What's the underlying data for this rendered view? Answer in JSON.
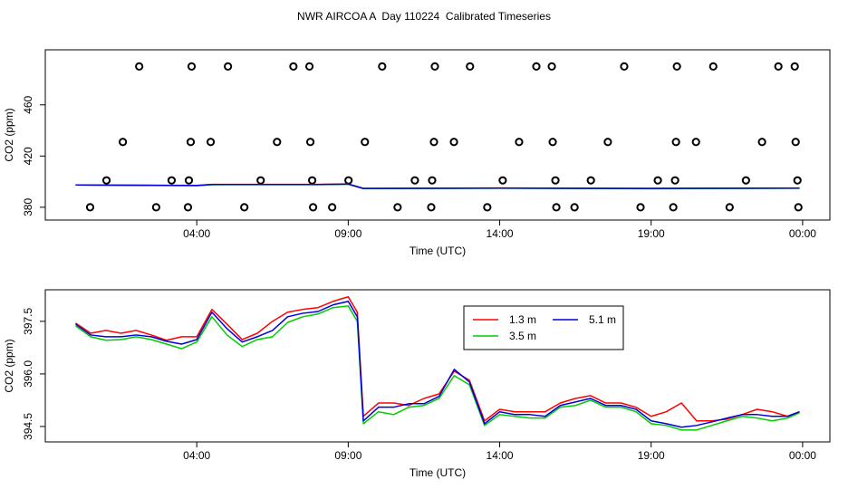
{
  "chart_data": [
    {
      "type": "line",
      "title": "NWR AIRCOA A  Day 110224  Calibrated Timeseries",
      "x_label": "Time (UTC)",
      "y_label": "CO2 (ppm)",
      "xlim": [
        -1,
        24.9
      ],
      "ylim": [
        370,
        503
      ],
      "xticks": [
        {
          "value": 4,
          "label": "04:00"
        },
        {
          "value": 9,
          "label": "09:00"
        },
        {
          "value": 14,
          "label": "14:00"
        },
        {
          "value": 19,
          "label": "19:00"
        },
        {
          "value": 24,
          "label": "00:00"
        }
      ],
      "yticks": [
        380,
        420,
        460
      ],
      "series": [
        {
          "type": "scatter",
          "color": "#000000",
          "x": [
            2.1,
            3.83,
            5.03,
            7.19,
            7.72,
            10.12,
            11.86,
            13.02,
            15.21,
            15.72,
            18.11,
            19.85,
            21.05,
            23.2,
            23.74,
            1.56,
            3.8,
            4.46,
            6.65,
            7.75,
            9.55,
            11.83,
            12.49,
            14.64,
            15.75,
            17.57,
            19.82,
            20.48,
            22.66,
            23.77,
            1.02,
            3.17,
            3.74,
            6.11,
            7.81,
            9.01,
            11.2,
            11.77,
            14.1,
            15.84,
            17.01,
            19.22,
            19.79,
            22.13,
            23.83,
            0.48,
            2.66,
            3.71,
            5.57,
            7.84,
            8.47,
            10.63,
            11.74,
            13.59,
            15.87,
            16.47,
            18.65,
            19.73,
            21.59,
            23.86
          ],
          "values": [
            490,
            490,
            490,
            490,
            490,
            490,
            490,
            490,
            490,
            490,
            490,
            490,
            490,
            490,
            490,
            431,
            431,
            431,
            431,
            431,
            431,
            431,
            431,
            431,
            431,
            431,
            431,
            431,
            431,
            431,
            401,
            401,
            401,
            401,
            401,
            401,
            401,
            401,
            401,
            401,
            401,
            401,
            401,
            401,
            401,
            380,
            380,
            380,
            380,
            380,
            380,
            380,
            380,
            380,
            380,
            380,
            380,
            380,
            380,
            380
          ]
        },
        {
          "type": "line",
          "color": "#ff0000",
          "x": [
            0,
            4,
            4.5,
            8,
            9,
            9.5,
            14,
            19,
            23.9
          ],
          "values": [
            397.45,
            397.06,
            397.84,
            397.89,
            398.2,
            394.79,
            394.99,
            394.79,
            394.92
          ]
        },
        {
          "type": "line",
          "color": "#00cc00",
          "x": [
            0,
            4,
            4.5,
            8,
            9,
            9.5,
            14,
            19,
            23.9
          ],
          "values": [
            397.37,
            396.91,
            397.63,
            397.71,
            397.94,
            394.58,
            394.84,
            394.53,
            394.89
          ]
        },
        {
          "type": "line",
          "color": "#0000dd",
          "x": [
            0,
            4,
            4.5,
            8,
            9,
            9.5,
            14,
            19,
            23.9
          ],
          "values": [
            397.42,
            396.98,
            397.76,
            397.78,
            398.07,
            394.66,
            394.92,
            394.66,
            394.92
          ]
        }
      ]
    },
    {
      "type": "line",
      "x_label": "Time (UTC)",
      "y_label": "CO2 (ppm)",
      "xlim": [
        -1,
        24.9
      ],
      "ylim": [
        394.06,
        398.4
      ],
      "xticks": [
        {
          "value": 4,
          "label": "04:00"
        },
        {
          "value": 9,
          "label": "09:00"
        },
        {
          "value": 14,
          "label": "14:00"
        },
        {
          "value": 19,
          "label": "19:00"
        },
        {
          "value": 24,
          "label": "00:00"
        }
      ],
      "yticks": [
        394.5,
        {
          "value": 396,
          "label": "396.0"
        },
        397.5
      ],
      "legend": "top",
      "x": [
        0,
        0.5,
        1,
        1.5,
        2,
        2.5,
        3,
        3.5,
        4,
        4.5,
        5,
        5.5,
        6,
        6.5,
        7,
        7.5,
        8,
        8.5,
        9,
        9.3,
        9.5,
        10,
        10.5,
        11,
        11.5,
        12,
        12.5,
        13,
        13.5,
        14,
        14.5,
        15,
        15.5,
        16,
        16.5,
        17,
        17.5,
        18,
        18.5,
        19,
        19.5,
        20,
        20.5,
        21,
        21.5,
        22,
        22.5,
        23,
        23.5,
        23.9
      ],
      "series": [
        {
          "name": "1.3 m",
          "color": "#ff0000",
          "values": [
            397.45,
            397.16,
            397.24,
            397.16,
            397.24,
            397.11,
            396.96,
            397.06,
            397.06,
            397.84,
            397.42,
            396.98,
            397.16,
            397.5,
            397.76,
            397.84,
            397.89,
            398.07,
            398.2,
            397.76,
            394.79,
            395.17,
            395.17,
            395.1,
            395.3,
            395.43,
            396.08,
            395.82,
            394.66,
            394.99,
            394.92,
            394.92,
            394.92,
            395.17,
            395.3,
            395.38,
            395.17,
            395.17,
            395.05,
            394.79,
            394.92,
            395.17,
            394.66,
            394.66,
            394.71,
            394.84,
            394.99,
            394.92,
            394.79,
            394.92
          ]
        },
        {
          "name": "3.5 m",
          "color": "#00cc00",
          "values": [
            397.37,
            397.06,
            396.96,
            396.98,
            397.06,
            396.98,
            396.85,
            396.72,
            396.91,
            397.63,
            397.11,
            396.78,
            396.98,
            397.06,
            397.47,
            397.63,
            397.71,
            397.89,
            397.94,
            397.5,
            394.58,
            394.92,
            394.84,
            395.05,
            395.1,
            395.3,
            395.95,
            395.69,
            394.53,
            394.84,
            394.79,
            394.74,
            394.74,
            395.05,
            395.1,
            395.25,
            395.05,
            395.05,
            394.92,
            394.58,
            394.53,
            394.4,
            394.4,
            394.53,
            394.66,
            394.79,
            394.74,
            394.66,
            394.74,
            394.89
          ]
        },
        {
          "name": "5.1 m",
          "color": "#0000dd",
          "values": [
            397.42,
            397.11,
            397.06,
            397.06,
            397.11,
            397.06,
            396.93,
            396.85,
            396.98,
            397.76,
            397.29,
            396.91,
            397.06,
            397.24,
            397.63,
            397.73,
            397.78,
            397.97,
            398.07,
            397.63,
            394.66,
            395.05,
            395.05,
            395.15,
            395.15,
            395.36,
            396.13,
            395.77,
            394.58,
            394.92,
            394.84,
            394.84,
            394.79,
            395.1,
            395.2,
            395.3,
            395.1,
            395.1,
            394.99,
            394.66,
            394.58,
            394.48,
            394.53,
            394.63,
            394.74,
            394.84,
            394.84,
            394.79,
            394.79,
            394.92
          ]
        }
      ]
    }
  ]
}
